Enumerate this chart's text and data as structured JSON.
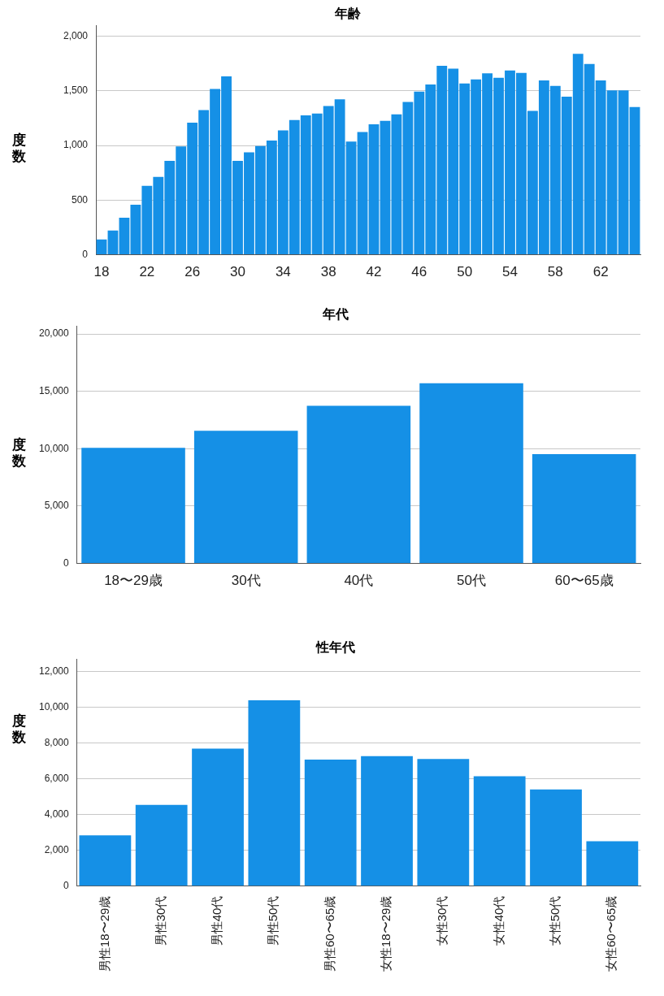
{
  "chart_data": [
    {
      "type": "bar",
      "title": "年齢",
      "ylabel": "度数",
      "color": "#1590e6",
      "grid": "y",
      "categories": [
        "18",
        null,
        null,
        null,
        "22",
        null,
        null,
        null,
        "26",
        null,
        null,
        null,
        "30",
        null,
        null,
        null,
        "34",
        null,
        null,
        null,
        "38",
        null,
        null,
        null,
        "42",
        null,
        null,
        null,
        "46",
        null,
        null,
        null,
        "50",
        null,
        null,
        null,
        "54",
        null,
        null,
        null,
        "58",
        null,
        null,
        null,
        "62",
        null,
        null,
        null
      ],
      "values": [
        140,
        222,
        339,
        459,
        631,
        713,
        860,
        991,
        1210,
        1324,
        1518,
        1633,
        860,
        937,
        995,
        1045,
        1138,
        1233,
        1276,
        1292,
        1362,
        1423,
        1036,
        1124,
        1195,
        1226,
        1285,
        1398,
        1493,
        1559,
        1729,
        1704,
        1568,
        1606,
        1661,
        1620,
        1686,
        1665,
        1317,
        1595,
        1545,
        1448,
        1840,
        1747,
        1595,
        1505,
        1505,
        1353
      ],
      "ylim": [
        0,
        2100
      ],
      "yticks": [
        {
          "value": 0,
          "label": "0"
        },
        {
          "value": 500,
          "label": "500"
        },
        {
          "value": 1000,
          "label": "1,000"
        },
        {
          "value": 1500,
          "label": "1,500"
        },
        {
          "value": 2000,
          "label": "2,000"
        }
      ]
    },
    {
      "type": "bar",
      "title": "年代",
      "ylabel": "度数",
      "color": "#1590e6",
      "grid": "y",
      "categories": [
        "18〜29歳",
        "30代",
        "40代",
        "50代",
        "60〜65歳"
      ],
      "values": [
        10070,
        11570,
        13740,
        15710,
        9520
      ],
      "ylim": [
        0,
        20700
      ],
      "yticks": [
        {
          "value": 0,
          "label": "0"
        },
        {
          "value": 5000,
          "label": "5,000"
        },
        {
          "value": 10000,
          "label": "10,000"
        },
        {
          "value": 15000,
          "label": "15,000"
        },
        {
          "value": 20000,
          "label": "20,000"
        }
      ]
    },
    {
      "type": "bar",
      "title": "性年代",
      "ylabel": "度数",
      "color": "#1590e6",
      "grid": "y",
      "categories": [
        "男性18〜29歳",
        "男性30代",
        "男性40代",
        "男性50代",
        "男性60〜65歳",
        "女性18〜29歳",
        "女性30代",
        "女性40代",
        "女性50代",
        "女性60〜65歳"
      ],
      "values": [
        2830,
        4540,
        7690,
        10390,
        7070,
        7270,
        7110,
        6140,
        5400,
        2510
      ],
      "ylim": [
        0,
        12700
      ],
      "yticks": [
        {
          "value": 0,
          "label": "0"
        },
        {
          "value": 2000,
          "label": "2,000"
        },
        {
          "value": 4000,
          "label": "4,000"
        },
        {
          "value": 6000,
          "label": "6,000"
        },
        {
          "value": 8000,
          "label": "8,000"
        },
        {
          "value": 10000,
          "label": "10,000"
        },
        {
          "value": 12000,
          "label": "12,000"
        }
      ]
    }
  ]
}
